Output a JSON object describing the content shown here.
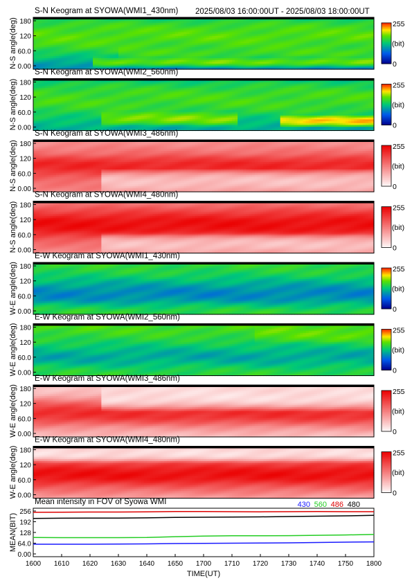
{
  "chart_data": [
    {
      "type": "heatmap",
      "title": "S-N Keogram at SYOWA(WMI1_430nm)",
      "time_range": "2025/08/03 16:00:00UT - 2025/08/03 18:00:00UT",
      "ylabel": "N-S angle(deg)",
      "yticks": [
        "180",
        "120",
        "60.0",
        "0.00"
      ],
      "colorbar": {
        "max": "255",
        "unit": "(bit)",
        "min": "0"
      },
      "palette": "rainbow",
      "y_range": [
        0,
        180
      ],
      "x_range": [
        1600,
        1800
      ],
      "base_level": [
        95,
        100,
        115,
        135,
        150,
        160,
        165,
        168,
        165,
        160,
        150,
        125
      ],
      "bands": [
        {
          "t0": 1635,
          "t1": 1800,
          "y0": 10,
          "y1": 40,
          "peak": 175
        },
        {
          "t0": 1650,
          "t1": 1800,
          "y0": 40,
          "y1": 80,
          "peak": 160
        }
      ]
    },
    {
      "type": "heatmap",
      "title": "S-N Keogram at SYOWA(WMI2_560nm)",
      "ylabel": "N-S angle(deg)",
      "yticks": [
        "180",
        "120",
        "60.0",
        "0.00"
      ],
      "colorbar": {
        "max": "255",
        "unit": "(bit)",
        "min": "0"
      },
      "palette": "rainbow",
      "y_range": [
        0,
        180
      ],
      "x_range": [
        1600,
        1800
      ],
      "base_level": [
        110,
        115,
        125,
        135,
        148,
        155,
        160,
        160,
        158,
        150,
        140,
        120
      ],
      "bands": [
        {
          "t0": 1640,
          "t1": 1720,
          "y0": 20,
          "y1": 60,
          "peak": 180
        },
        {
          "t0": 1745,
          "t1": 1800,
          "y0": 15,
          "y1": 50,
          "peak": 215
        }
      ]
    },
    {
      "type": "heatmap",
      "title": "S-N Keogram at SYOWA(WMI3_486nm)",
      "ylabel": "N-S angle(deg)",
      "yticks": [
        "180",
        "120",
        "60.0",
        "0.00"
      ],
      "colorbar": {
        "max": "255",
        "unit": "(bit)",
        "min": "0"
      },
      "palette": "red",
      "y_range": [
        0,
        180
      ],
      "x_range": [
        1600,
        1800
      ],
      "base_level": [
        120,
        130,
        140,
        160,
        190,
        215,
        215,
        190,
        150,
        130,
        115,
        105
      ],
      "bands": [
        {
          "t0": 1640,
          "t1": 1800,
          "y0": 0,
          "y1": 70,
          "peak": 60
        }
      ]
    },
    {
      "type": "heatmap",
      "title": "S-N Keogram at SYOWA(WMI4_480nm)",
      "ylabel": "N-S angle(deg)",
      "yticks": [
        "180",
        "120",
        "60.0",
        "0.00"
      ],
      "colorbar": {
        "max": "255",
        "unit": "(bit)",
        "min": "0"
      },
      "palette": "red",
      "y_range": [
        0,
        180
      ],
      "x_range": [
        1600,
        1800
      ],
      "base_level": [
        115,
        125,
        145,
        170,
        205,
        235,
        240,
        235,
        210,
        180,
        150,
        125
      ],
      "bands": [
        {
          "t0": 1640,
          "t1": 1800,
          "y0": 0,
          "y1": 60,
          "peak": 60
        }
      ]
    },
    {
      "type": "heatmap",
      "title": "E-W Keogram at SYOWA(WMI1_430nm)",
      "ylabel": "W-E angle(deg)",
      "yticks": [
        "180",
        "120",
        "60.0",
        "0.00"
      ],
      "colorbar": {
        "max": "255",
        "unit": "(bit)",
        "min": "0"
      },
      "palette": "rainbow",
      "y_range": [
        0,
        180
      ],
      "x_range": [
        1600,
        1800
      ],
      "base_level": [
        150,
        145,
        125,
        100,
        90,
        92,
        105,
        120,
        135,
        145,
        150,
        152
      ],
      "bands": []
    },
    {
      "type": "heatmap",
      "title": "E-W Keogram at SYOWA(WMI2_560nm)",
      "ylabel": "W-E angle(deg)",
      "yticks": [
        "180",
        "120",
        "60.0",
        "0.00"
      ],
      "colorbar": {
        "max": "255",
        "unit": "(bit)",
        "min": "0"
      },
      "palette": "rainbow",
      "y_range": [
        0,
        180
      ],
      "x_range": [
        1600,
        1800
      ],
      "base_level": [
        150,
        145,
        130,
        115,
        108,
        115,
        128,
        140,
        150,
        158,
        162,
        162
      ],
      "bands": [
        {
          "t0": 1730,
          "t1": 1800,
          "y0": 120,
          "y1": 180,
          "peak": 170
        }
      ]
    },
    {
      "type": "heatmap",
      "title": "E-W Keogram at SYOWA(WMI3_486nm)",
      "ylabel": "W-E angle(deg)",
      "yticks": [
        "180",
        "120",
        "60.0",
        "0.00"
      ],
      "colorbar": {
        "max": "255",
        "unit": "(bit)",
        "min": "0"
      },
      "palette": "red",
      "y_range": [
        0,
        180
      ],
      "x_range": [
        1600,
        1800
      ],
      "base_level": [
        60,
        80,
        110,
        160,
        200,
        210,
        195,
        160,
        110,
        75,
        55,
        45
      ],
      "bands": [
        {
          "t0": 1640,
          "t1": 1800,
          "y0": 100,
          "y1": 180,
          "peak": 30
        }
      ]
    },
    {
      "type": "heatmap",
      "title": "E-W Keogram at SYOWA(WMI4_480nm)",
      "ylabel": "W-E angle(deg)",
      "yticks": [
        "180",
        "120",
        "60.0",
        "0.00"
      ],
      "colorbar": {
        "max": "255",
        "unit": "(bit)",
        "min": "0"
      },
      "palette": "red",
      "y_range": [
        0,
        180
      ],
      "x_range": [
        1600,
        1800
      ],
      "base_level": [
        90,
        120,
        150,
        190,
        230,
        240,
        230,
        200,
        160,
        110,
        70,
        45
      ],
      "bands": [
        {
          "t0": 1600,
          "t1": 1800,
          "y0": 130,
          "y1": 180,
          "peak": 30
        }
      ]
    },
    {
      "type": "line",
      "title": "Mean intensity in FOV of Syowa WMI",
      "xlabel": "TIME(UT)",
      "ylabel": "MEAN(BIT)",
      "ylim": [
        0,
        256
      ],
      "yticks": [
        "256",
        "192",
        "128",
        "64.0",
        "0.00"
      ],
      "xlim": [
        1600,
        1800
      ],
      "x_tick_values": [
        1600,
        1610,
        1620,
        1630,
        1640,
        1650,
        1700,
        1710,
        1720,
        1730,
        1740,
        1750,
        1800
      ],
      "xticks": [
        "1600",
        "1610",
        "1620",
        "1630",
        "1640",
        "1650",
        "1700",
        "1710",
        "1720",
        "1730",
        "1740",
        "1750",
        "1800"
      ],
      "x": [
        1600,
        1610,
        1620,
        1630,
        1640,
        1650,
        1700,
        1710,
        1720,
        1730,
        1740,
        1750,
        1800
      ],
      "series": [
        {
          "name": "430",
          "color": "#1a1aff",
          "values": [
            58,
            58,
            58,
            59,
            60,
            62,
            63,
            64,
            65,
            66,
            68,
            70,
            72
          ]
        },
        {
          "name": "560",
          "color": "#22cc22",
          "values": [
            98,
            97,
            97,
            97,
            98,
            103,
            106,
            108,
            108,
            109,
            111,
            113,
            116
          ]
        },
        {
          "name": "486",
          "color": "#dd0000",
          "values": [
            248,
            249,
            250,
            250,
            251,
            253,
            253,
            252,
            251,
            252,
            253,
            252,
            252
          ]
        },
        {
          "name": "480",
          "color": "#000000",
          "values": [
            212,
            213,
            214,
            214,
            215,
            218,
            219,
            220,
            221,
            223,
            225,
            227,
            230
          ]
        }
      ]
    }
  ]
}
